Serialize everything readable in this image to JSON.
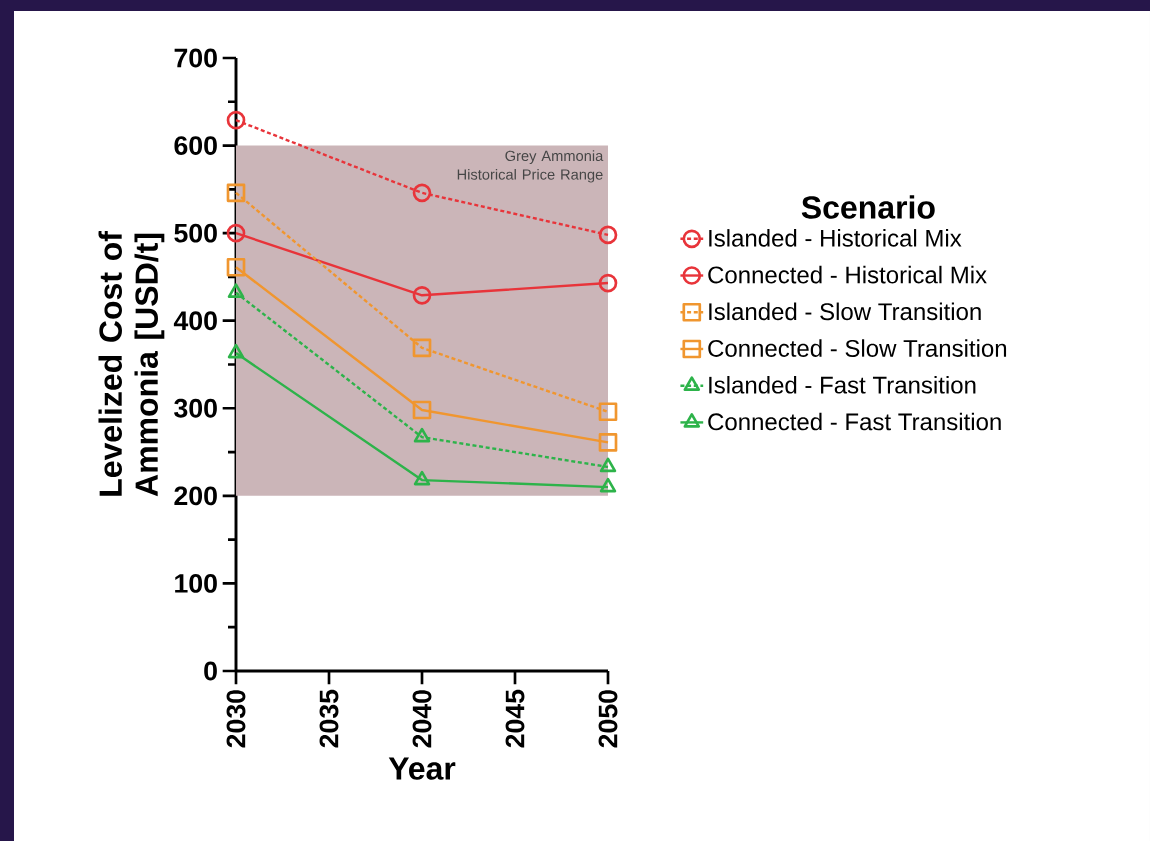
{
  "chart_data": {
    "type": "line",
    "xlabel": "Year",
    "ylabel": "Levelized Cost of Ammonia [USD/t]",
    "legend_title": "Scenario",
    "x": [
      2030,
      2040,
      2050
    ],
    "xlim": [
      2030,
      2050
    ],
    "xticks": [
      2030,
      2035,
      2040,
      2045,
      2050
    ],
    "ylim": [
      0,
      700
    ],
    "yticks": [
      0,
      100,
      200,
      300,
      400,
      500,
      600,
      700
    ],
    "legend": "right",
    "bands": [
      {
        "axis": "y",
        "from": 200,
        "to": 600,
        "label": "Grey Ammonia Historical Price Range",
        "color": "#cbb5b8"
      }
    ],
    "series": [
      {
        "name": "Islanded - Historical Mix",
        "color": "#e8343a",
        "marker": "circle",
        "line_style": "dashed",
        "values": [
          629,
          546,
          498
        ]
      },
      {
        "name": "Connected - Historical Mix",
        "color": "#e8343a",
        "marker": "circle",
        "line_style": "solid",
        "values": [
          500,
          429,
          443
        ]
      },
      {
        "name": "Islanded - Slow Transition",
        "color": "#f0962f",
        "marker": "square",
        "line_style": "dashed",
        "values": [
          546,
          369,
          296
        ]
      },
      {
        "name": "Connected - Slow Transition",
        "color": "#f0962f",
        "marker": "square",
        "line_style": "solid",
        "values": [
          461,
          298,
          261
        ]
      },
      {
        "name": "Islanded - Fast Transition",
        "color": "#2db34a",
        "marker": "triangle",
        "line_style": "dashed",
        "values": [
          432,
          267,
          233
        ]
      },
      {
        "name": "Connected - Fast Transition",
        "color": "#2db34a",
        "marker": "triangle",
        "line_style": "solid",
        "values": [
          363,
          218,
          210
        ]
      }
    ]
  }
}
